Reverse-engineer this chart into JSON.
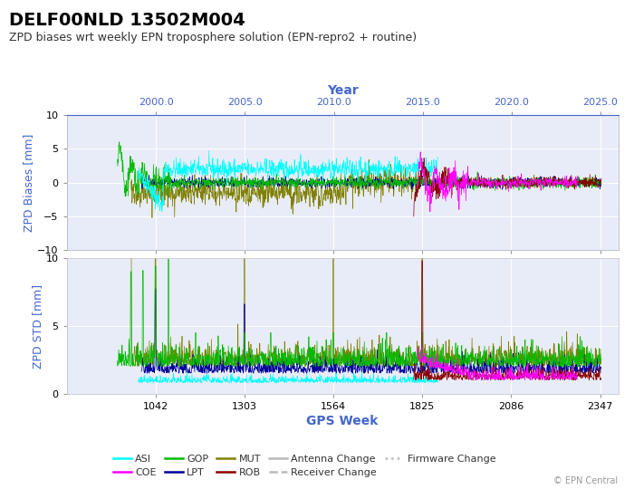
{
  "title": "DELF00NLD 13502M004",
  "subtitle": "ZPD biases wrt weekly EPN troposphere solution (EPN-repro2 + routine)",
  "xlabel_bottom": "GPS Week",
  "xlabel_top": "Year",
  "ylabel_top": "ZPD Biases [mm]",
  "ylabel_bottom": "ZPD STD [mm]",
  "copyright": "© EPN Central",
  "xlim": [
    781,
    2400
  ],
  "ylim_bias": [
    -10,
    10
  ],
  "ylim_std": [
    0,
    10
  ],
  "yticks_bias": [
    -10,
    -5,
    0,
    5,
    10
  ],
  "yticks_std": [
    0,
    5,
    10
  ],
  "gps_ticks": [
    1042,
    1303,
    1564,
    1825,
    2086,
    2347
  ],
  "year_ticks": [
    2000.0,
    2005.0,
    2010.0,
    2015.0,
    2020.0,
    2025.0
  ],
  "colors": {
    "ASI": "#00FFFF",
    "COE": "#FF00FF",
    "GOP": "#00BB00",
    "LPT": "#000099",
    "MUT": "#808000",
    "ROB": "#8B0000"
  },
  "plot_bg": "#E8ECF8",
  "grid_color": "#FFFFFF",
  "axis_label_color": "#4466CC",
  "title_fontsize": 14,
  "subtitle_fontsize": 9,
  "axis_label_fontsize": 9,
  "tick_fontsize": 8
}
